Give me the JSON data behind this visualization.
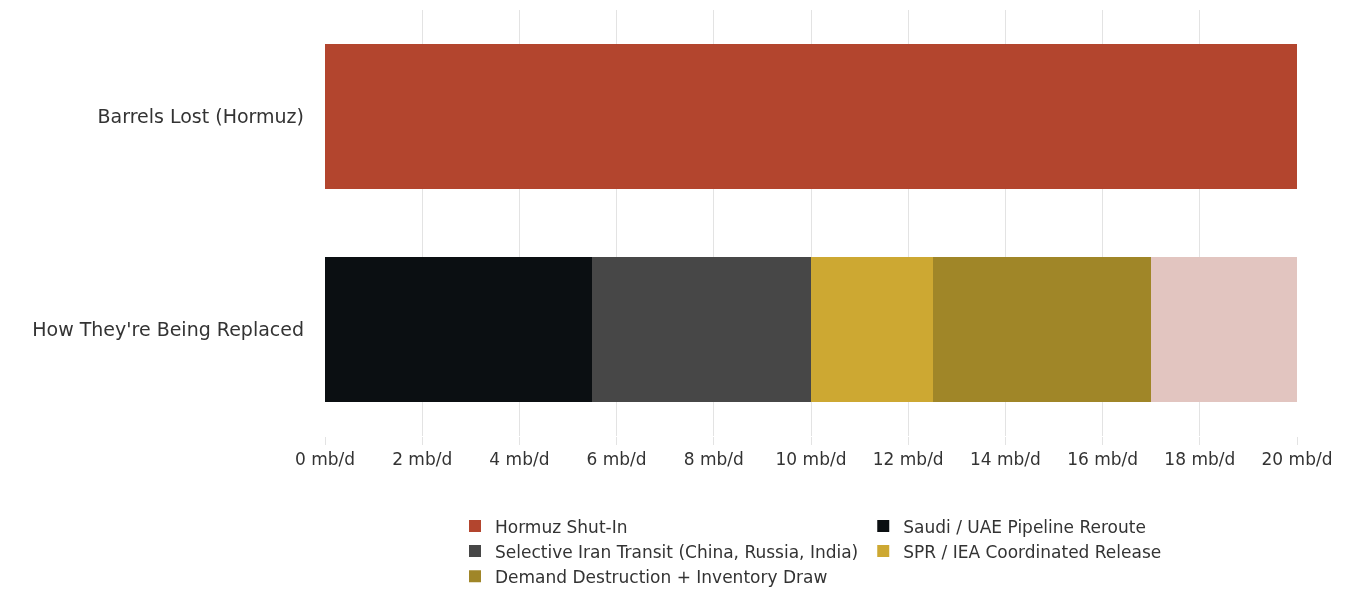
{
  "chart_data": {
    "type": "bar",
    "orientation": "horizontal",
    "stacked": true,
    "categories": [
      "Barrels Lost (Hormuz)",
      "How They're Being Replaced"
    ],
    "series": [
      {
        "name": "Hormuz Shut-In",
        "color": "#b3452e",
        "values": [
          20,
          null
        ]
      },
      {
        "name": "Saudi / UAE Pipeline Reroute",
        "color": "#0b0f12",
        "values": [
          null,
          5.5
        ]
      },
      {
        "name": "Selective Iran Transit (China, Russia, India)",
        "color": "#474747",
        "values": [
          null,
          4.5
        ]
      },
      {
        "name": "SPR / IEA Coordinated Release",
        "color": "#cda832",
        "values": [
          null,
          2.5
        ]
      },
      {
        "name": "Demand Destruction + Inventory Draw",
        "color": "#a08628",
        "values": [
          null,
          4.5
        ]
      },
      {
        "color": "#e2c5c0",
        "values": [
          null,
          3
        ]
      }
    ],
    "xlim": [
      0,
      20
    ],
    "xticks": [
      {
        "value": 0,
        "label": "0 mb/d"
      },
      {
        "value": 2,
        "label": "2 mb/d"
      },
      {
        "value": 4,
        "label": "4 mb/d"
      },
      {
        "value": 6,
        "label": "6 mb/d"
      },
      {
        "value": 8,
        "label": "8 mb/d"
      },
      {
        "value": 10,
        "label": "10 mb/d"
      },
      {
        "value": 12,
        "label": "12 mb/d"
      },
      {
        "value": 14,
        "label": "14 mb/d"
      },
      {
        "value": 16,
        "label": "16 mb/d"
      },
      {
        "value": 18,
        "label": "18 mb/d"
      },
      {
        "value": 20,
        "label": "20 mb/d"
      }
    ],
    "grid": "x",
    "legend": "bottom"
  }
}
